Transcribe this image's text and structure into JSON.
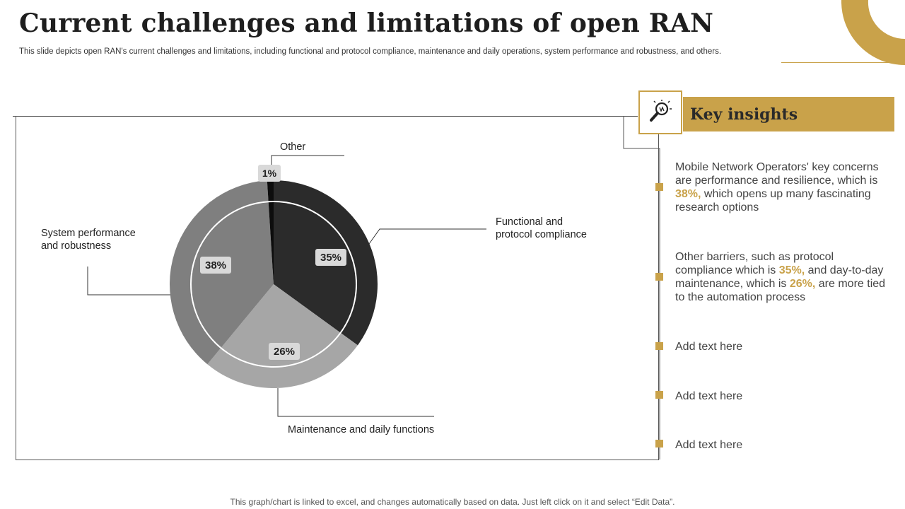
{
  "header": {
    "title": "Current challenges and limitations of open RAN",
    "subtitle": "This slide depicts open RAN's current challenges and limitations, including functional and protocol compliance, maintenance and daily operations, system performance and robustness, and others."
  },
  "chart_data": {
    "type": "pie",
    "categories": [
      "Functional and protocol compliance",
      "Maintenance and daily functions",
      "System performance and robustness",
      "Other"
    ],
    "values": [
      35,
      26,
      38,
      1
    ],
    "value_labels": [
      "35%",
      "26%",
      "38%",
      "1%"
    ],
    "colors": [
      "#2b2b2b",
      "#a6a6a6",
      "#7f7f7f",
      "#0d0d0d"
    ],
    "ring_colors": [
      "#2b2b2b",
      "#a6a6a6",
      "#7f7f7f",
      "#0d0d0d"
    ],
    "start_angle_deg": 0,
    "legend": "none (callout labels)"
  },
  "callouts": {
    "other": "Other",
    "functional_1": "Functional and",
    "functional_2": "protocol compliance",
    "system_1": "System performance",
    "system_2": "and robustness",
    "maintenance": "Maintenance and daily functions"
  },
  "insights": {
    "title": "Key insights",
    "icon": "lightbulb-magnifier-icon",
    "accent_color": "#c9a24a",
    "items": [
      {
        "pre": "Mobile Network Operators' key concerns are performance and resilience, which is ",
        "h1": "38%,",
        "mid": " which opens up many fascinating research options",
        "h2": "",
        "post": ""
      },
      {
        "pre": "Other barriers, such as protocol compliance which is ",
        "h1": "35%,",
        "mid": " and day-to-day maintenance, which is ",
        "h2": "26%,",
        "post": " are more tied to the automation process"
      },
      {
        "pre": "Add text here",
        "h1": "",
        "mid": "",
        "h2": "",
        "post": ""
      },
      {
        "pre": "Add text here",
        "h1": "",
        "mid": "",
        "h2": "",
        "post": ""
      },
      {
        "pre": "Add text here",
        "h1": "",
        "mid": "",
        "h2": "",
        "post": ""
      }
    ]
  },
  "footer": {
    "note": "This graph/chart is linked to excel, and changes automatically based on data. Just left click on it and select “Edit Data”."
  }
}
